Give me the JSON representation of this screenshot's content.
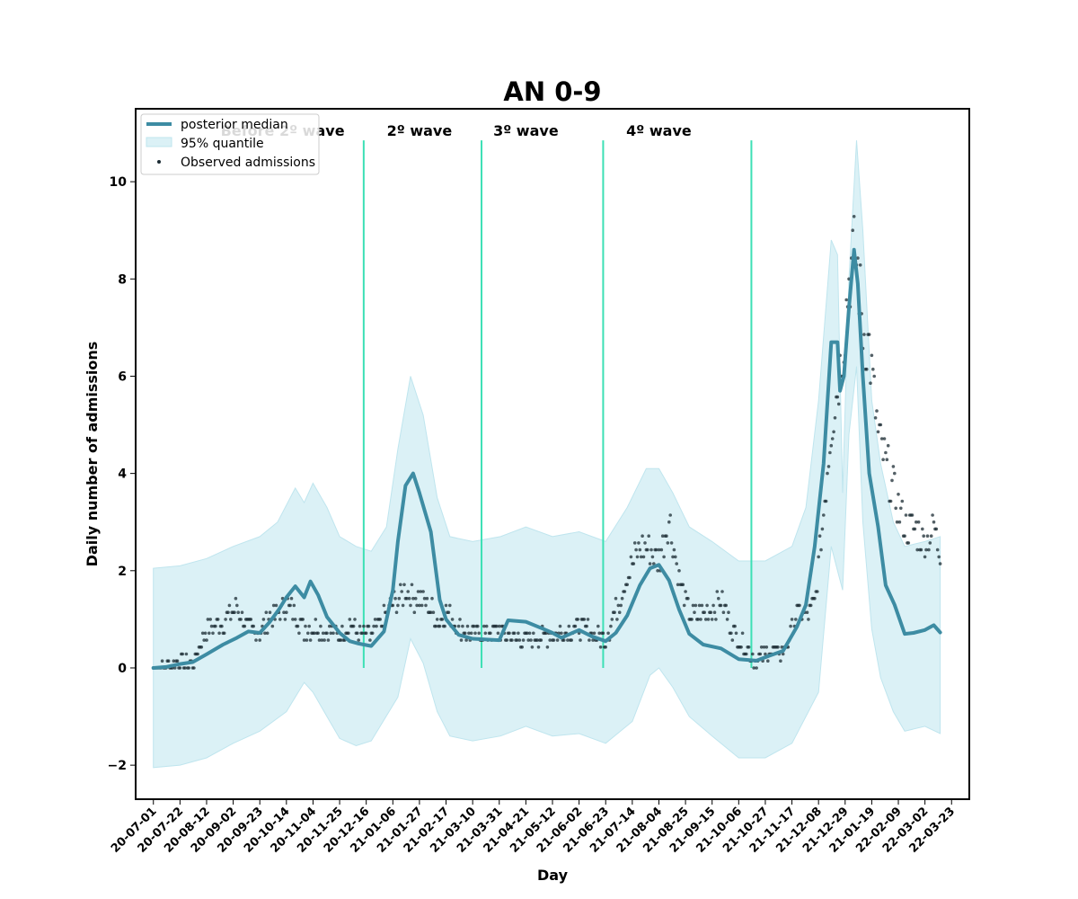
{
  "chart_data": {
    "type": "line",
    "title": "AN 0-9",
    "xlabel": "Day",
    "ylabel": "Daily number of admissions",
    "ylim": [
      -2.7,
      11.5
    ],
    "yticks": [
      -2,
      0,
      2,
      4,
      6,
      8,
      10
    ],
    "ytick_labels": [
      "−2",
      "0",
      "2",
      "4",
      "6",
      "8",
      "10"
    ],
    "x_range": [
      "2020-06-17",
      "2022-04-06"
    ],
    "xtick_labels": [
      "20-07-01",
      "20-07-22",
      "20-08-12",
      "20-09-02",
      "20-09-23",
      "20-10-14",
      "20-11-04",
      "20-11-25",
      "20-12-16",
      "21-01-06",
      "21-01-27",
      "21-02-17",
      "21-03-10",
      "21-03-31",
      "21-04-21",
      "21-05-12",
      "21-06-02",
      "21-06-23",
      "21-07-14",
      "21-08-04",
      "21-08-25",
      "21-09-15",
      "21-10-06",
      "21-10-27",
      "21-11-17",
      "21-12-08",
      "21-12-29",
      "21-01-19",
      "22-02-09",
      "22-03-02",
      "22-03-23"
    ],
    "wave_labels": [
      {
        "text": "Before 2º wave",
        "center_date": "2020-10-11"
      },
      {
        "text": "2º wave",
        "center_date": "2021-01-27"
      },
      {
        "text": "3º wave",
        "center_date": "2021-04-21"
      },
      {
        "text": "4º wave",
        "center_date": "2021-08-04"
      }
    ],
    "wave_boundaries": [
      "2020-12-14",
      "2021-03-17",
      "2021-06-21",
      "2021-10-16"
    ],
    "legend": {
      "placement": "top-left",
      "entries": [
        "posterior median",
        "95% quantile",
        "Observed admissions"
      ]
    },
    "series": [
      {
        "name": "posterior median",
        "points": [
          [
            "2020-07-01",
            0
          ],
          [
            "2020-07-11",
            0.02
          ],
          [
            "2020-07-22",
            0.08
          ],
          [
            "2020-08-01",
            0.12
          ],
          [
            "2020-08-12",
            0.28
          ],
          [
            "2020-08-25",
            0.48
          ],
          [
            "2020-09-05",
            0.62
          ],
          [
            "2020-09-14",
            0.75
          ],
          [
            "2020-09-23",
            0.72
          ],
          [
            "2020-10-01",
            0.95
          ],
          [
            "2020-10-08",
            1.2
          ],
          [
            "2020-10-14",
            1.45
          ],
          [
            "2020-10-21",
            1.68
          ],
          [
            "2020-10-28",
            1.45
          ],
          [
            "2020-11-02",
            1.78
          ],
          [
            "2020-11-08",
            1.5
          ],
          [
            "2020-11-15",
            1.05
          ],
          [
            "2020-11-25",
            0.72
          ],
          [
            "2020-12-03",
            0.55
          ],
          [
            "2020-12-10",
            0.5
          ],
          [
            "2020-12-20",
            0.45
          ],
          [
            "2020-12-30",
            0.75
          ],
          [
            "2021-01-06",
            1.6
          ],
          [
            "2021-01-10",
            2.6
          ],
          [
            "2021-01-16",
            3.75
          ],
          [
            "2021-01-22",
            4.0
          ],
          [
            "2021-01-27",
            3.6
          ],
          [
            "2021-02-05",
            2.8
          ],
          [
            "2021-02-12",
            1.4
          ],
          [
            "2021-02-17",
            1.0
          ],
          [
            "2021-02-27",
            0.68
          ],
          [
            "2021-03-10",
            0.6
          ],
          [
            "2021-03-31",
            0.57
          ],
          [
            "2021-04-07",
            0.98
          ],
          [
            "2021-04-21",
            0.95
          ],
          [
            "2021-05-05",
            0.8
          ],
          [
            "2021-05-12",
            0.72
          ],
          [
            "2021-05-19",
            0.62
          ],
          [
            "2021-06-02",
            0.78
          ],
          [
            "2021-06-12",
            0.65
          ],
          [
            "2021-06-23",
            0.55
          ],
          [
            "2021-07-01",
            0.72
          ],
          [
            "2021-07-10",
            1.08
          ],
          [
            "2021-07-20",
            1.7
          ],
          [
            "2021-07-28",
            2.05
          ],
          [
            "2021-08-04",
            2.12
          ],
          [
            "2021-08-12",
            1.8
          ],
          [
            "2021-08-20",
            1.2
          ],
          [
            "2021-08-28",
            0.7
          ],
          [
            "2021-09-08",
            0.48
          ],
          [
            "2021-09-22",
            0.4
          ],
          [
            "2021-10-06",
            0.18
          ],
          [
            "2021-10-20",
            0.15
          ],
          [
            "2021-10-30",
            0.25
          ],
          [
            "2021-11-10",
            0.35
          ],
          [
            "2021-11-21",
            0.85
          ],
          [
            "2021-11-28",
            1.3
          ],
          [
            "2021-12-05",
            2.5
          ],
          [
            "2021-12-12",
            4.2
          ],
          [
            "2021-12-18",
            6.7
          ],
          [
            "2021-12-23",
            6.7
          ],
          [
            "2021-12-25",
            5.7
          ],
          [
            "2021-12-28",
            6.0
          ],
          [
            "2022-01-01",
            7.4
          ],
          [
            "2022-01-05",
            8.6
          ],
          [
            "2022-01-08",
            7.9
          ],
          [
            "2022-01-12",
            6.0
          ],
          [
            "2022-01-17",
            4.0
          ],
          [
            "2022-01-24",
            2.9
          ],
          [
            "2022-01-30",
            1.7
          ],
          [
            "2022-02-06",
            1.3
          ],
          [
            "2022-02-14",
            0.7
          ],
          [
            "2022-02-21",
            0.72
          ],
          [
            "2022-03-02",
            0.78
          ],
          [
            "2022-03-09",
            0.88
          ],
          [
            "2022-03-14",
            0.73
          ]
        ]
      },
      {
        "name": "95% quantile",
        "upper": [
          [
            "2020-07-01",
            2.05
          ],
          [
            "2020-07-22",
            2.1
          ],
          [
            "2020-08-12",
            2.25
          ],
          [
            "2020-09-02",
            2.5
          ],
          [
            "2020-09-23",
            2.7
          ],
          [
            "2020-10-07",
            3.0
          ],
          [
            "2020-10-21",
            3.7
          ],
          [
            "2020-10-28",
            3.4
          ],
          [
            "2020-11-04",
            3.8
          ],
          [
            "2020-11-15",
            3.3
          ],
          [
            "2020-11-25",
            2.7
          ],
          [
            "2020-12-08",
            2.5
          ],
          [
            "2020-12-20",
            2.4
          ],
          [
            "2021-01-01",
            2.9
          ],
          [
            "2021-01-10",
            4.5
          ],
          [
            "2021-01-20",
            6.0
          ],
          [
            "2021-01-30",
            5.2
          ],
          [
            "2021-02-10",
            3.5
          ],
          [
            "2021-02-20",
            2.7
          ],
          [
            "2021-03-10",
            2.6
          ],
          [
            "2021-04-01",
            2.7
          ],
          [
            "2021-04-21",
            2.9
          ],
          [
            "2021-05-12",
            2.7
          ],
          [
            "2021-06-02",
            2.8
          ],
          [
            "2021-06-23",
            2.6
          ],
          [
            "2021-07-10",
            3.3
          ],
          [
            "2021-07-25",
            4.1
          ],
          [
            "2021-08-04",
            4.1
          ],
          [
            "2021-08-15",
            3.6
          ],
          [
            "2021-08-28",
            2.9
          ],
          [
            "2021-09-15",
            2.6
          ],
          [
            "2021-10-06",
            2.2
          ],
          [
            "2021-10-27",
            2.2
          ],
          [
            "2021-11-17",
            2.5
          ],
          [
            "2021-11-28",
            3.3
          ],
          [
            "2021-12-08",
            5.5
          ],
          [
            "2021-12-18",
            8.8
          ],
          [
            "2021-12-23",
            8.5
          ],
          [
            "2021-12-27",
            3.6
          ],
          [
            "2022-01-01",
            8.0
          ],
          [
            "2022-01-07",
            10.85
          ],
          [
            "2022-01-12",
            9.0
          ],
          [
            "2022-01-19",
            5.5
          ],
          [
            "2022-01-26",
            4.2
          ],
          [
            "2022-02-05",
            3.0
          ],
          [
            "2022-02-14",
            2.5
          ],
          [
            "2022-03-02",
            2.6
          ],
          [
            "2022-03-14",
            2.7
          ]
        ],
        "lower": [
          [
            "2020-07-01",
            -2.05
          ],
          [
            "2020-07-22",
            -2.0
          ],
          [
            "2020-08-12",
            -1.85
          ],
          [
            "2020-09-02",
            -1.55
          ],
          [
            "2020-09-23",
            -1.3
          ],
          [
            "2020-10-14",
            -0.9
          ],
          [
            "2020-10-28",
            -0.3
          ],
          [
            "2020-11-04",
            -0.5
          ],
          [
            "2020-11-15",
            -1.0
          ],
          [
            "2020-11-25",
            -1.45
          ],
          [
            "2020-12-08",
            -1.6
          ],
          [
            "2020-12-20",
            -1.5
          ],
          [
            "2021-01-10",
            -0.6
          ],
          [
            "2021-01-20",
            0.6
          ],
          [
            "2021-01-30",
            0.1
          ],
          [
            "2021-02-10",
            -0.9
          ],
          [
            "2021-02-20",
            -1.4
          ],
          [
            "2021-03-10",
            -1.5
          ],
          [
            "2021-04-01",
            -1.4
          ],
          [
            "2021-04-21",
            -1.2
          ],
          [
            "2021-05-12",
            -1.4
          ],
          [
            "2021-06-02",
            -1.35
          ],
          [
            "2021-06-23",
            -1.55
          ],
          [
            "2021-07-14",
            -1.1
          ],
          [
            "2021-07-28",
            -0.15
          ],
          [
            "2021-08-04",
            0.0
          ],
          [
            "2021-08-15",
            -0.4
          ],
          [
            "2021-08-28",
            -1.0
          ],
          [
            "2021-09-15",
            -1.4
          ],
          [
            "2021-10-06",
            -1.85
          ],
          [
            "2021-10-27",
            -1.85
          ],
          [
            "2021-11-17",
            -1.55
          ],
          [
            "2021-12-08",
            -0.5
          ],
          [
            "2021-12-18",
            2.5
          ],
          [
            "2021-12-23",
            2.0
          ],
          [
            "2021-12-27",
            1.6
          ],
          [
            "2022-01-01",
            4.8
          ],
          [
            "2022-01-07",
            6.2
          ],
          [
            "2022-01-12",
            3.0
          ],
          [
            "2022-01-19",
            0.8
          ],
          [
            "2022-01-26",
            -0.2
          ],
          [
            "2022-02-05",
            -0.9
          ],
          [
            "2022-02-14",
            -1.3
          ],
          [
            "2022-03-02",
            -1.2
          ],
          [
            "2022-03-14",
            -1.35
          ]
        ]
      },
      {
        "name": "Observed admissions",
        "keypoints": [
          [
            "2020-07-01",
            0
          ],
          [
            "2020-07-11",
            0.05
          ],
          [
            "2020-07-22",
            0.1
          ],
          [
            "2020-08-01",
            0.05
          ],
          [
            "2020-08-12",
            0.8
          ],
          [
            "2020-08-25",
            0.95
          ],
          [
            "2020-09-05",
            1.3
          ],
          [
            "2020-09-14",
            0.8
          ],
          [
            "2020-09-23",
            0.7
          ],
          [
            "2020-10-01",
            1.05
          ],
          [
            "2020-10-08",
            1.1
          ],
          [
            "2020-10-14",
            1.3
          ],
          [
            "2020-10-21",
            1.1
          ],
          [
            "2020-10-28",
            0.8
          ],
          [
            "2020-11-04",
            0.85
          ],
          [
            "2020-11-15",
            0.75
          ],
          [
            "2020-11-25",
            0.7
          ],
          [
            "2020-12-03",
            0.9
          ],
          [
            "2020-12-10",
            0.7
          ],
          [
            "2020-12-20",
            0.65
          ],
          [
            "2021-01-06",
            1.3
          ],
          [
            "2021-01-16",
            1.6
          ],
          [
            "2021-01-27",
            1.4
          ],
          [
            "2021-02-05",
            1.2
          ],
          [
            "2021-02-12",
            0.9
          ],
          [
            "2021-02-17",
            1.2
          ],
          [
            "2021-02-27",
            0.8
          ],
          [
            "2021-03-10",
            0.7
          ],
          [
            "2021-03-31",
            0.75
          ],
          [
            "2021-04-21",
            0.55
          ],
          [
            "2021-05-12",
            0.7
          ],
          [
            "2021-06-02",
            0.85
          ],
          [
            "2021-06-23",
            0.6
          ],
          [
            "2021-07-10",
            1.9
          ],
          [
            "2021-07-20",
            2.5
          ],
          [
            "2021-07-28",
            2.4
          ],
          [
            "2021-08-04",
            2.2
          ],
          [
            "2021-08-12",
            3.1
          ],
          [
            "2021-08-20",
            1.8
          ],
          [
            "2021-08-28",
            1.1
          ],
          [
            "2021-09-08",
            1.1
          ],
          [
            "2021-09-22",
            1.4
          ],
          [
            "2021-10-06",
            0.55
          ],
          [
            "2021-10-20",
            0.15
          ],
          [
            "2021-10-30",
            0.35
          ],
          [
            "2021-11-10",
            0.3
          ],
          [
            "2021-11-21",
            1.1
          ],
          [
            "2021-11-28",
            1.1
          ],
          [
            "2021-12-05",
            1.3
          ],
          [
            "2021-12-12",
            3.2
          ],
          [
            "2021-12-18",
            5.0
          ],
          [
            "2021-12-23",
            5.8
          ],
          [
            "2021-12-28",
            6.8
          ],
          [
            "2022-01-01",
            8.0
          ],
          [
            "2022-01-05",
            8.5
          ],
          [
            "2022-01-08",
            8.2
          ],
          [
            "2022-01-12",
            7.0
          ],
          [
            "2022-01-17",
            6.6
          ],
          [
            "2022-01-24",
            4.8
          ],
          [
            "2022-01-30",
            4.2
          ],
          [
            "2022-02-06",
            3.6
          ],
          [
            "2022-02-14",
            2.9
          ],
          [
            "2022-02-21",
            2.9
          ],
          [
            "2022-03-02",
            2.6
          ],
          [
            "2022-03-09",
            2.9
          ],
          [
            "2022-03-14",
            2.4
          ]
        ],
        "observed_range": [
          "2020-07-01",
          "2022-03-14"
        ]
      }
    ],
    "colors": {
      "median": "#3d8ca3",
      "band_fill": "#dbf1f6",
      "band_edge": "#bfe5ee",
      "points": "#1b2b33",
      "boundary": "#3de0b5",
      "legend_border": "#cccccc"
    }
  }
}
